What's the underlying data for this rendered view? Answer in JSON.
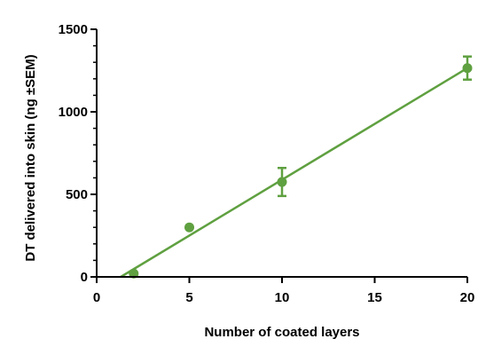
{
  "chart_data": {
    "type": "scatter",
    "title": "",
    "xlabel": "Number of coated layers",
    "ylabel": "DT delivered  into skin (ng ±SEM)",
    "xlim": [
      0,
      20
    ],
    "ylim": [
      0,
      1500
    ],
    "x_ticks": [
      0,
      5,
      10,
      15,
      20
    ],
    "x_tick_labels": [
      "0",
      "5",
      "10",
      "15",
      "20"
    ],
    "y_ticks": [
      0,
      500,
      1000,
      1500
    ],
    "y_tick_labels": [
      "0",
      "500",
      "1000",
      "1500"
    ],
    "y_minor_step": 100,
    "grid": false,
    "legend": "none",
    "color": "#5fa040",
    "series": [
      {
        "points": [
          {
            "x": 2,
            "y": 20,
            "err": 0
          },
          {
            "x": 5,
            "y": 300,
            "err": 0
          },
          {
            "x": 10,
            "y": 575,
            "err": 85
          },
          {
            "x": 20,
            "y": 1265,
            "err": 70
          }
        ]
      }
    ],
    "fit_line": {
      "x": [
        1.3,
        20
      ],
      "y": [
        0,
        1265
      ]
    }
  }
}
